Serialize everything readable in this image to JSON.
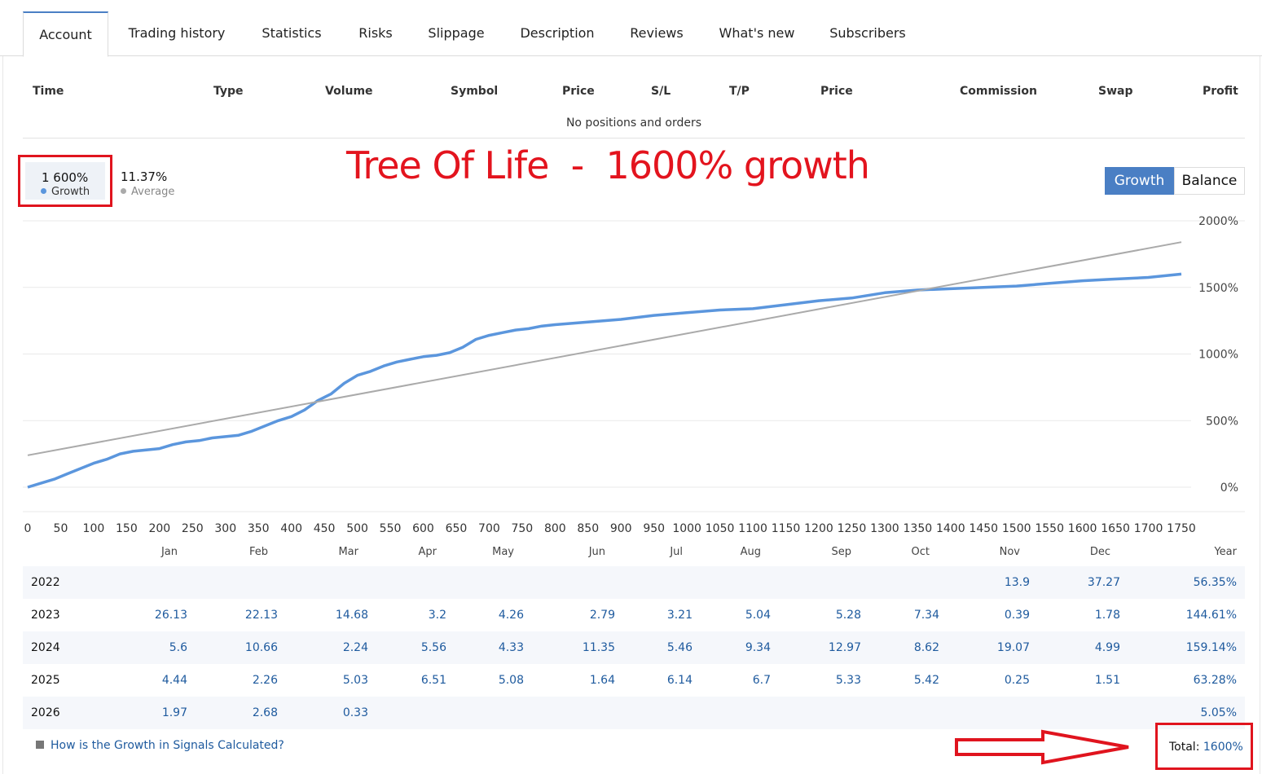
{
  "tabs": [
    {
      "label": "Account",
      "active": true
    },
    {
      "label": "Trading history"
    },
    {
      "label": "Statistics"
    },
    {
      "label": "Risks"
    },
    {
      "label": "Slippage"
    },
    {
      "label": "Description"
    },
    {
      "label": "Reviews"
    },
    {
      "label": "What's new"
    },
    {
      "label": "Subscribers"
    }
  ],
  "positions": {
    "columns": [
      "Time",
      "Type",
      "Volume",
      "Symbol",
      "Price",
      "S/L",
      "T/P",
      "Price",
      "Commission",
      "Swap",
      "Profit"
    ],
    "empty_text": "No positions and orders"
  },
  "summary": {
    "growth_value": "1 600%",
    "growth_label": "Growth",
    "average_value": "11.37%",
    "average_label": "Average",
    "growth_color": "#5b96dd",
    "average_color": "#aaaaaa"
  },
  "headline": "Tree Of Life  -  1600% growth",
  "toggle": {
    "growth": "Growth",
    "balance": "Balance"
  },
  "chart_data": {
    "type": "line",
    "y_tick_labels": [
      "2000%",
      "1500%",
      "1000%",
      "500%",
      "0%"
    ],
    "y_ticks": [
      2000,
      1500,
      1000,
      500,
      0
    ],
    "ylim": [
      0,
      2000
    ],
    "x_ticks": [
      0,
      50,
      100,
      150,
      200,
      250,
      300,
      350,
      400,
      450,
      500,
      550,
      600,
      650,
      700,
      750,
      800,
      850,
      900,
      950,
      1000,
      1050,
      1100,
      1150,
      1200,
      1250,
      1300,
      1350,
      1400,
      1450,
      1500,
      1550,
      1600,
      1650,
      1700,
      1750
    ],
    "xlim": [
      0,
      1750
    ],
    "grid": true,
    "series": [
      {
        "name": "Growth",
        "color": "#5b96dd",
        "points": [
          [
            0,
            0
          ],
          [
            20,
            30
          ],
          [
            40,
            60
          ],
          [
            60,
            100
          ],
          [
            80,
            140
          ],
          [
            100,
            180
          ],
          [
            120,
            210
          ],
          [
            140,
            250
          ],
          [
            160,
            270
          ],
          [
            180,
            280
          ],
          [
            200,
            290
          ],
          [
            220,
            320
          ],
          [
            240,
            340
          ],
          [
            260,
            350
          ],
          [
            280,
            370
          ],
          [
            300,
            380
          ],
          [
            320,
            390
          ],
          [
            340,
            420
          ],
          [
            360,
            460
          ],
          [
            380,
            500
          ],
          [
            400,
            530
          ],
          [
            420,
            580
          ],
          [
            440,
            650
          ],
          [
            460,
            700
          ],
          [
            480,
            780
          ],
          [
            500,
            840
          ],
          [
            520,
            870
          ],
          [
            540,
            910
          ],
          [
            560,
            940
          ],
          [
            580,
            960
          ],
          [
            600,
            980
          ],
          [
            620,
            990
          ],
          [
            640,
            1010
          ],
          [
            660,
            1050
          ],
          [
            680,
            1110
          ],
          [
            700,
            1140
          ],
          [
            720,
            1160
          ],
          [
            740,
            1180
          ],
          [
            760,
            1190
          ],
          [
            780,
            1210
          ],
          [
            800,
            1220
          ],
          [
            850,
            1240
          ],
          [
            900,
            1260
          ],
          [
            950,
            1290
          ],
          [
            1000,
            1310
          ],
          [
            1050,
            1330
          ],
          [
            1100,
            1340
          ],
          [
            1150,
            1370
          ],
          [
            1200,
            1400
          ],
          [
            1250,
            1420
          ],
          [
            1300,
            1460
          ],
          [
            1350,
            1480
          ],
          [
            1400,
            1490
          ],
          [
            1450,
            1500
          ],
          [
            1500,
            1510
          ],
          [
            1550,
            1530
          ],
          [
            1600,
            1550
          ],
          [
            1640,
            1560
          ],
          [
            1700,
            1575
          ],
          [
            1750,
            1600
          ]
        ]
      },
      {
        "name": "Average",
        "color": "#aaaaaa",
        "points": [
          [
            0,
            240
          ],
          [
            1750,
            1840
          ]
        ]
      }
    ]
  },
  "monthly": {
    "headers": [
      "Jan",
      "Feb",
      "Mar",
      "Apr",
      "May",
      "Jun",
      "Jul",
      "Aug",
      "Sep",
      "Oct",
      "Nov",
      "Dec",
      "Year"
    ],
    "rows": [
      {
        "year": "2022",
        "values": [
          "",
          "",
          "",
          "",
          "",
          "",
          "",
          "",
          "",
          "",
          "13.9",
          "37.27"
        ],
        "total": "56.35%"
      },
      {
        "year": "2023",
        "values": [
          "26.13",
          "22.13",
          "14.68",
          "3.2",
          "4.26",
          "2.79",
          "3.21",
          "5.04",
          "5.28",
          "7.34",
          "0.39",
          "1.78"
        ],
        "total": "144.61%"
      },
      {
        "year": "2024",
        "values": [
          "5.6",
          "10.66",
          "2.24",
          "5.56",
          "4.33",
          "11.35",
          "5.46",
          "9.34",
          "12.97",
          "8.62",
          "19.07",
          "4.99"
        ],
        "total": "159.14%"
      },
      {
        "year": "2025",
        "values": [
          "4.44",
          "2.26",
          "5.03",
          "6.51",
          "5.08",
          "1.64",
          "6.14",
          "6.7",
          "5.33",
          "5.42",
          "0.25",
          "1.51"
        ],
        "total": "63.28%"
      },
      {
        "year": "2026",
        "values": [
          "1.97",
          "2.68",
          "0.33",
          "",
          "",
          "",
          "",
          "",
          "",
          "",
          "",
          ""
        ],
        "total": "5.05%"
      }
    ]
  },
  "footer": {
    "help_link": "How is the Growth in Signals Calculated?",
    "total_label": "Total:",
    "total_value": "1600%"
  }
}
